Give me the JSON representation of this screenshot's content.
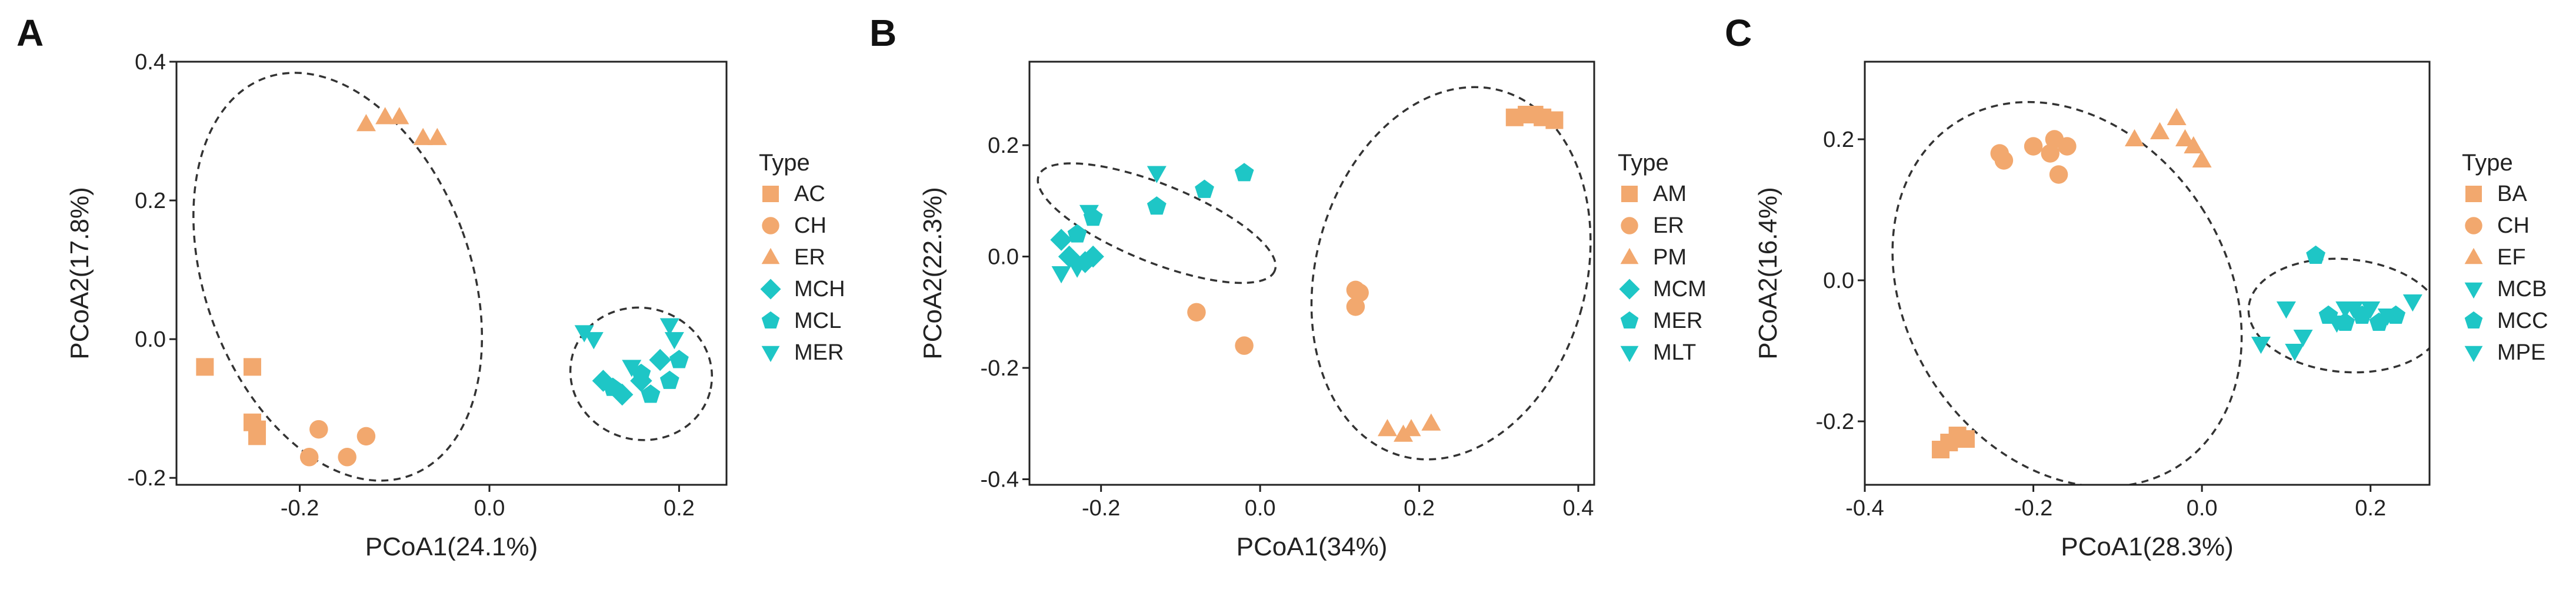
{
  "colors": {
    "orange": "#F2A86E",
    "teal": "#1EC6C6",
    "frame": "#222222",
    "ellipse": "#333333"
  },
  "legend_title": "Type",
  "chart_data": [
    {
      "type": "scatter",
      "panel_label": "A",
      "xlabel": "PCoA1(24.1%)",
      "ylabel": "PCoA2(17.8%)",
      "xlim": [
        -0.33,
        0.25
      ],
      "ylim": [
        -0.21,
        0.4
      ],
      "xticks": [
        -0.2,
        0.0,
        0.2
      ],
      "xtick_labels": [
        "-0.2",
        "0.0",
        "0.2"
      ],
      "yticks": [
        -0.2,
        0.0,
        0.2,
        0.4
      ],
      "ytick_labels": [
        "-0.2",
        "0.0",
        "0.2",
        "0.4"
      ],
      "series": [
        {
          "name": "AC",
          "shape": "square",
          "color": "orange",
          "points": [
            [
              -0.3,
              -0.04
            ],
            [
              -0.25,
              -0.04
            ],
            [
              -0.25,
              -0.12
            ],
            [
              -0.245,
              -0.13
            ],
            [
              -0.245,
              -0.14
            ]
          ]
        },
        {
          "name": "CH",
          "shape": "circle",
          "color": "orange",
          "points": [
            [
              -0.19,
              -0.17
            ],
            [
              -0.18,
              -0.13
            ],
            [
              -0.15,
              -0.17
            ],
            [
              -0.13,
              -0.14
            ]
          ]
        },
        {
          "name": "ER",
          "shape": "triangle",
          "color": "orange",
          "points": [
            [
              -0.13,
              0.31
            ],
            [
              -0.11,
              0.32
            ],
            [
              -0.095,
              0.32
            ],
            [
              -0.07,
              0.29
            ],
            [
              -0.055,
              0.29
            ]
          ]
        },
        {
          "name": "MCH",
          "shape": "diamond",
          "color": "teal",
          "points": [
            [
              0.12,
              -0.06
            ],
            [
              0.14,
              -0.08
            ],
            [
              0.16,
              -0.06
            ],
            [
              0.18,
              -0.03
            ]
          ]
        },
        {
          "name": "MCL",
          "shape": "pentagon",
          "color": "teal",
          "points": [
            [
              0.13,
              -0.07
            ],
            [
              0.16,
              -0.05
            ],
            [
              0.17,
              -0.08
            ],
            [
              0.19,
              -0.06
            ],
            [
              0.2,
              -0.03
            ]
          ]
        },
        {
          "name": "MER",
          "shape": "triangle-down",
          "color": "teal",
          "points": [
            [
              0.1,
              0.01
            ],
            [
              0.11,
              0.0
            ],
            [
              0.15,
              -0.04
            ],
            [
              0.19,
              0.02
            ],
            [
              0.195,
              0.0
            ]
          ]
        }
      ],
      "ellipses": [
        {
          "center": [
            -0.16,
            0.09
          ],
          "semi_axes": [
            0.14,
            0.305
          ],
          "angle_deg": -20
        },
        {
          "center": [
            0.16,
            -0.05
          ],
          "semi_axes": [
            0.075,
            0.095
          ],
          "angle_deg": 15
        }
      ]
    },
    {
      "type": "scatter",
      "panel_label": "B",
      "xlabel": "PCoA1(34%)",
      "ylabel": "PCoA2(22.3%)",
      "xlim": [
        -0.29,
        0.42
      ],
      "ylim": [
        -0.41,
        0.35
      ],
      "xticks": [
        -0.2,
        0.0,
        0.2,
        0.4
      ],
      "xtick_labels": [
        "-0.2",
        "0.0",
        "0.2",
        "0.4"
      ],
      "yticks": [
        -0.4,
        -0.2,
        0.0,
        0.2
      ],
      "ytick_labels": [
        "-0.4",
        "-0.2",
        "0.0",
        "0.2"
      ],
      "series": [
        {
          "name": "AM",
          "shape": "square",
          "color": "orange",
          "points": [
            [
              0.32,
              0.25
            ],
            [
              0.335,
              0.255
            ],
            [
              0.345,
              0.255
            ],
            [
              0.355,
              0.25
            ],
            [
              0.37,
              0.245
            ]
          ]
        },
        {
          "name": "ER",
          "shape": "circle",
          "color": "orange",
          "points": [
            [
              -0.08,
              -0.1
            ],
            [
              -0.02,
              -0.16
            ],
            [
              0.12,
              -0.06
            ],
            [
              0.125,
              -0.065
            ],
            [
              0.12,
              -0.09
            ]
          ]
        },
        {
          "name": "PM",
          "shape": "triangle",
          "color": "orange",
          "points": [
            [
              0.16,
              -0.31
            ],
            [
              0.18,
              -0.32
            ],
            [
              0.19,
              -0.31
            ],
            [
              0.215,
              -0.3
            ]
          ]
        },
        {
          "name": "MCM",
          "shape": "diamond",
          "color": "teal",
          "points": [
            [
              -0.25,
              0.03
            ],
            [
              -0.24,
              0.0
            ],
            [
              -0.22,
              -0.01
            ],
            [
              -0.21,
              0.0
            ]
          ]
        },
        {
          "name": "MER",
          "shape": "pentagon",
          "color": "teal",
          "points": [
            [
              -0.23,
              0.04
            ],
            [
              -0.21,
              0.07
            ],
            [
              -0.13,
              0.09
            ],
            [
              -0.07,
              0.12
            ],
            [
              -0.02,
              0.15
            ]
          ]
        },
        {
          "name": "MLT",
          "shape": "triangle-down",
          "color": "teal",
          "points": [
            [
              -0.25,
              -0.03
            ],
            [
              -0.23,
              -0.02
            ],
            [
              -0.215,
              0.08
            ],
            [
              -0.13,
              0.15
            ]
          ]
        }
      ],
      "ellipses": [
        {
          "center": [
            -0.13,
            0.06
          ],
          "semi_axes": [
            0.16,
            0.07
          ],
          "angle_deg": 22
        },
        {
          "center": [
            0.24,
            -0.03
          ],
          "semi_axes": [
            0.17,
            0.34
          ],
          "angle_deg": 15
        }
      ]
    },
    {
      "type": "scatter",
      "panel_label": "C",
      "xlabel": "PCoA1(28.3%)",
      "ylabel": "PCoA2(16.4%)",
      "xlim": [
        -0.4,
        0.27
      ],
      "ylim": [
        -0.29,
        0.31
      ],
      "xticks": [
        -0.4,
        -0.2,
        0.0,
        0.2
      ],
      "xtick_labels": [
        "-0.4",
        "-0.2",
        "0.0",
        "0.2"
      ],
      "yticks": [
        -0.2,
        0.0,
        0.2
      ],
      "ytick_labels": [
        "-0.2",
        "0.0",
        "0.2"
      ],
      "series": [
        {
          "name": "BA",
          "shape": "square",
          "color": "orange",
          "points": [
            [
              -0.31,
              -0.24
            ],
            [
              -0.3,
              -0.23
            ],
            [
              -0.29,
              -0.22
            ],
            [
              -0.28,
              -0.225
            ]
          ]
        },
        {
          "name": "CH",
          "shape": "circle",
          "color": "orange",
          "points": [
            [
              -0.24,
              0.18
            ],
            [
              -0.235,
              0.17
            ],
            [
              -0.2,
              0.19
            ],
            [
              -0.18,
              0.18
            ],
            [
              -0.175,
              0.2
            ],
            [
              -0.17,
              0.15
            ],
            [
              -0.16,
              0.19
            ]
          ]
        },
        {
          "name": "EF",
          "shape": "triangle",
          "color": "orange",
          "points": [
            [
              -0.08,
              0.2
            ],
            [
              -0.05,
              0.21
            ],
            [
              -0.03,
              0.23
            ],
            [
              -0.02,
              0.2
            ],
            [
              -0.01,
              0.19
            ],
            [
              0.0,
              0.17
            ]
          ]
        },
        {
          "name": "MCB",
          "shape": "triangle-down",
          "color": "teal",
          "points": [
            [
              0.07,
              -0.09
            ],
            [
              0.1,
              -0.04
            ],
            [
              0.11,
              -0.1
            ],
            [
              0.12,
              -0.08
            ],
            [
              0.17,
              -0.04
            ],
            [
              0.25,
              -0.03
            ]
          ]
        },
        {
          "name": "MCC",
          "shape": "pentagon",
          "color": "teal",
          "points": [
            [
              0.135,
              0.035
            ],
            [
              0.15,
              -0.05
            ],
            [
              0.17,
              -0.06
            ],
            [
              0.19,
              -0.05
            ],
            [
              0.21,
              -0.06
            ],
            [
              0.23,
              -0.05
            ]
          ]
        },
        {
          "name": "MPE",
          "shape": "triangle-down",
          "color": "teal",
          "points": [
            [
              0.16,
              -0.06
            ],
            [
              0.18,
              -0.04
            ],
            [
              0.2,
              -0.04
            ],
            [
              0.22,
              -0.05
            ]
          ]
        }
      ],
      "ellipses": [
        {
          "center": [
            -0.16,
            -0.02
          ],
          "semi_axes": [
            0.19,
            0.29
          ],
          "angle_deg": -33
        },
        {
          "center": [
            0.17,
            -0.05
          ],
          "semi_axes": [
            0.115,
            0.08
          ],
          "angle_deg": 5
        }
      ]
    }
  ]
}
